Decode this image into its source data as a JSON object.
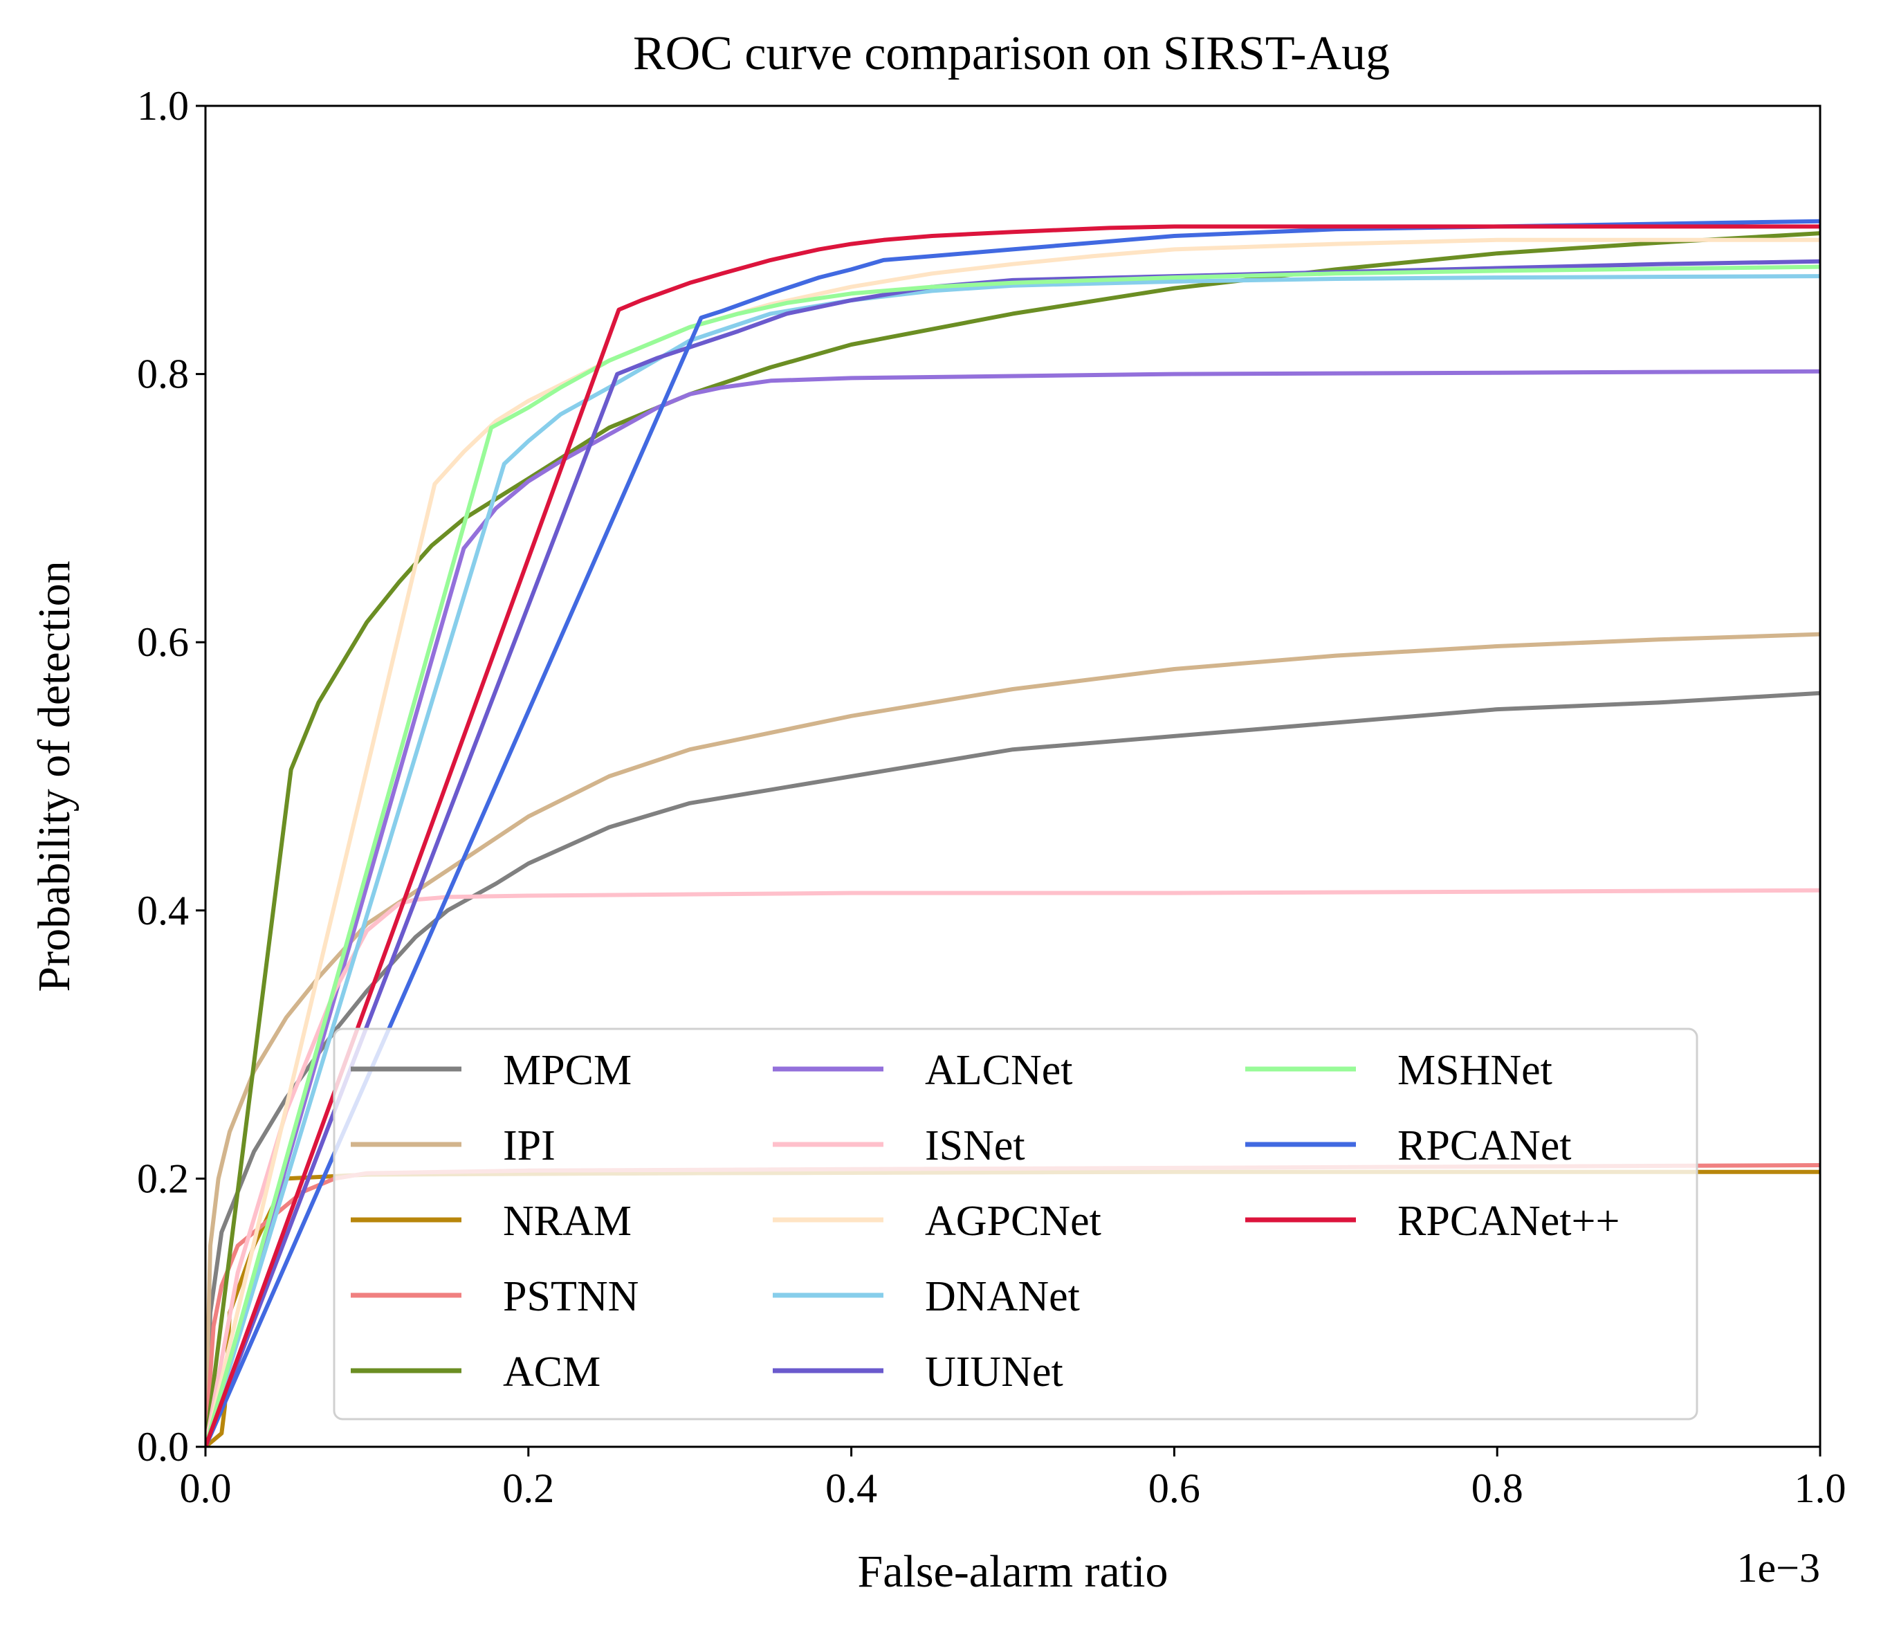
{
  "chart_data": {
    "type": "line",
    "title": "ROC curve comparison on SIRST-Aug",
    "xlabel": "False-alarm ratio",
    "ylabel": "Probability of detection",
    "x_offset_text": "1e−3",
    "xlim": [
      0.0,
      1.0
    ],
    "ylim": [
      0.0,
      1.0
    ],
    "xticks": [
      0.0,
      0.2,
      0.4,
      0.6,
      0.8,
      1.0
    ],
    "yticks": [
      0.0,
      0.2,
      0.4,
      0.6,
      0.8,
      1.0
    ],
    "xtick_labels": [
      "0.0",
      "0.2",
      "0.4",
      "0.6",
      "0.8",
      "1.0"
    ],
    "ytick_labels": [
      "0.0",
      "0.2",
      "0.4",
      "0.6",
      "0.8",
      "1.0"
    ],
    "grid": false,
    "legend": {
      "placement": "lower-right",
      "columns": 3
    },
    "series": [
      {
        "name": "MPCM",
        "color": "#808080",
        "x": [
          0,
          0.003,
          0.01,
          0.03,
          0.05,
          0.08,
          0.1,
          0.13,
          0.15,
          0.18,
          0.2,
          0.25,
          0.3,
          0.35,
          0.4,
          0.5,
          0.6,
          0.7,
          0.8,
          0.9,
          1.0
        ],
        "y": [
          0,
          0.1,
          0.16,
          0.22,
          0.26,
          0.31,
          0.34,
          0.38,
          0.4,
          0.42,
          0.435,
          0.462,
          0.48,
          0.49,
          0.5,
          0.52,
          0.53,
          0.54,
          0.55,
          0.555,
          0.562
        ]
      },
      {
        "name": "IPI",
        "color": "#D2B48C",
        "x": [
          0,
          0.003,
          0.008,
          0.015,
          0.03,
          0.05,
          0.07,
          0.1,
          0.15,
          0.2,
          0.25,
          0.3,
          0.4,
          0.5,
          0.6,
          0.7,
          0.8,
          0.9,
          1.0
        ],
        "y": [
          0,
          0.15,
          0.2,
          0.235,
          0.28,
          0.32,
          0.35,
          0.39,
          0.43,
          0.47,
          0.5,
          0.52,
          0.545,
          0.565,
          0.58,
          0.59,
          0.597,
          0.602,
          0.606
        ]
      },
      {
        "name": "NRAM",
        "color": "#B8860B",
        "x": [
          0,
          0.005,
          0.01,
          0.012,
          0.015,
          0.03,
          0.05,
          0.1,
          0.3,
          0.6,
          1.0
        ],
        "y": [
          0,
          0.005,
          0.01,
          0.03,
          0.1,
          0.15,
          0.2,
          0.203,
          0.204,
          0.205,
          0.205
        ]
      },
      {
        "name": "PSTNN",
        "color": "#F08080",
        "x": [
          0,
          0.005,
          0.01,
          0.02,
          0.04,
          0.06,
          0.08,
          0.1,
          0.2,
          0.4,
          0.6,
          0.8,
          1.0
        ],
        "y": [
          0,
          0.09,
          0.12,
          0.15,
          0.17,
          0.19,
          0.2,
          0.204,
          0.206,
          0.207,
          0.208,
          0.209,
          0.21
        ]
      },
      {
        "name": "ACM",
        "color": "#6B8E23",
        "x": [
          0,
          0.053,
          0.07,
          0.09,
          0.1,
          0.12,
          0.14,
          0.16,
          0.2,
          0.25,
          0.3,
          0.35,
          0.4,
          0.5,
          0.6,
          0.7,
          0.8,
          0.9,
          1.0
        ],
        "y": [
          0,
          0.505,
          0.555,
          0.595,
          0.615,
          0.645,
          0.672,
          0.692,
          0.722,
          0.76,
          0.785,
          0.805,
          0.822,
          0.845,
          0.864,
          0.878,
          0.89,
          0.898,
          0.905
        ]
      },
      {
        "name": "ALCNet",
        "color": "#9370DB",
        "x": [
          0,
          0.16,
          0.18,
          0.2,
          0.22,
          0.25,
          0.28,
          0.3,
          0.32,
          0.35,
          0.4,
          0.6,
          0.8,
          1.0
        ],
        "y": [
          0,
          0.67,
          0.7,
          0.72,
          0.735,
          0.755,
          0.775,
          0.785,
          0.79,
          0.795,
          0.797,
          0.8,
          0.801,
          0.802
        ]
      },
      {
        "name": "ISNet",
        "color": "#FFC0CB",
        "x": [
          0,
          0.02,
          0.05,
          0.08,
          0.1,
          0.12,
          0.13,
          0.15,
          0.2,
          0.4,
          0.6,
          0.8,
          1.0
        ],
        "y": [
          0,
          0.13,
          0.25,
          0.34,
          0.385,
          0.405,
          0.408,
          0.41,
          0.411,
          0.413,
          0.413,
          0.414,
          0.415
        ]
      },
      {
        "name": "AGPCNet",
        "color": "#FFE4C4",
        "x": [
          0,
          0.142,
          0.16,
          0.18,
          0.2,
          0.25,
          0.3,
          0.35,
          0.4,
          0.45,
          0.5,
          0.55,
          0.6,
          0.7,
          0.8,
          0.9,
          1.0
        ],
        "y": [
          0,
          0.718,
          0.742,
          0.765,
          0.78,
          0.81,
          0.835,
          0.852,
          0.865,
          0.875,
          0.882,
          0.888,
          0.893,
          0.897,
          0.9,
          0.9,
          0.9
        ]
      },
      {
        "name": "DNANet",
        "color": "#87CEEB",
        "x": [
          0,
          0.185,
          0.2,
          0.22,
          0.25,
          0.3,
          0.35,
          0.4,
          0.45,
          0.5,
          0.6,
          0.7,
          0.8,
          1.0
        ],
        "y": [
          0,
          0.733,
          0.75,
          0.77,
          0.79,
          0.825,
          0.845,
          0.855,
          0.862,
          0.866,
          0.869,
          0.871,
          0.872,
          0.873
        ]
      },
      {
        "name": "UIUNet",
        "color": "#6A5ACD",
        "x": [
          0,
          0.255,
          0.28,
          0.3,
          0.33,
          0.36,
          0.4,
          0.45,
          0.5,
          0.6,
          0.7,
          0.8,
          0.9,
          1.0
        ],
        "y": [
          0,
          0.8,
          0.812,
          0.82,
          0.832,
          0.845,
          0.855,
          0.865,
          0.87,
          0.873,
          0.876,
          0.879,
          0.882,
          0.884
        ]
      },
      {
        "name": "MSHNet",
        "color": "#98FB98",
        "x": [
          0,
          0.177,
          0.2,
          0.22,
          0.25,
          0.28,
          0.3,
          0.33,
          0.36,
          0.4,
          0.45,
          0.5,
          0.6,
          0.7,
          0.8,
          1.0
        ],
        "y": [
          0,
          0.76,
          0.775,
          0.79,
          0.81,
          0.825,
          0.835,
          0.845,
          0.853,
          0.86,
          0.865,
          0.868,
          0.872,
          0.875,
          0.877,
          0.88
        ]
      },
      {
        "name": "RPCANet",
        "color": "#4169E1",
        "x": [
          0,
          0.307,
          0.32,
          0.35,
          0.38,
          0.4,
          0.42,
          0.45,
          0.5,
          0.55,
          0.6,
          0.7,
          0.8,
          0.9,
          1.0
        ],
        "y": [
          0,
          0.842,
          0.847,
          0.86,
          0.872,
          0.878,
          0.885,
          0.888,
          0.893,
          0.898,
          0.903,
          0.908,
          0.91,
          0.912,
          0.914
        ]
      },
      {
        "name": "RPCANet++",
        "color": "#DC143C",
        "x": [
          0,
          0.256,
          0.27,
          0.3,
          0.32,
          0.35,
          0.38,
          0.4,
          0.42,
          0.45,
          0.5,
          0.56,
          0.6,
          0.7,
          0.8,
          0.9,
          1.0
        ],
        "y": [
          0,
          0.848,
          0.855,
          0.868,
          0.875,
          0.885,
          0.893,
          0.897,
          0.9,
          0.903,
          0.906,
          0.909,
          0.91,
          0.91,
          0.91,
          0.91,
          0.91
        ]
      }
    ]
  }
}
